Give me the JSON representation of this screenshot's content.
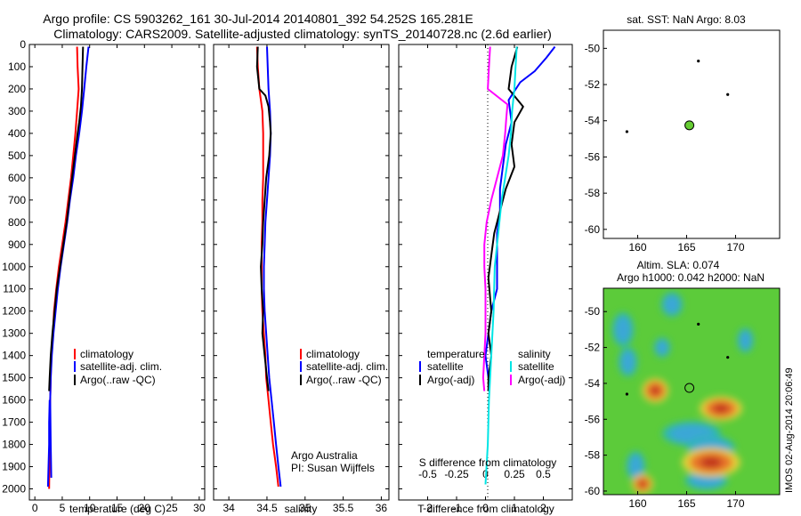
{
  "header": {
    "line1": "Argo profile: CS 5903262_161 30-Jul-2014 20140801_392 54.252S 165.281E",
    "line2": "Climatology: CARS2009. Satellite-adjusted climatology: synTS_20140728.nc (2.6d earlier)"
  },
  "credit": {
    "org": "Argo Australia",
    "pi": "PI: Susan Wijffels"
  },
  "stamp": "IMOS 02-Aug-2014 20:06:49",
  "colors": {
    "red": "#ff0000",
    "blue": "#0000ff",
    "black": "#000000",
    "cyan": "#00e5e5",
    "magenta": "#ff00ff",
    "green": "#66cc33"
  },
  "chart_data": [
    {
      "id": "temperature",
      "type": "line",
      "xlabel": "temperature (deg C)",
      "ylabel": "",
      "xlim": [
        -1,
        31
      ],
      "ylim": [
        2050,
        0
      ],
      "xticks": [
        0,
        5,
        10,
        15,
        20,
        25,
        30
      ],
      "yticks": [
        0,
        100,
        200,
        300,
        400,
        500,
        600,
        700,
        800,
        900,
        1000,
        1100,
        1200,
        1300,
        1400,
        1500,
        1600,
        1700,
        1800,
        1900,
        2000
      ],
      "legend": [
        "climatology",
        "satellite-adj. clim.",
        "Argo(..raw -QC)"
      ],
      "legend_placement": "lower-center",
      "series": [
        {
          "name": "climatology",
          "color": "red",
          "points": [
            [
              7.7,
              10
            ],
            [
              7.8,
              100
            ],
            [
              8.0,
              200
            ],
            [
              7.7,
              300
            ],
            [
              7.4,
              400
            ],
            [
              7.0,
              500
            ],
            [
              6.6,
              600
            ],
            [
              6.1,
              700
            ],
            [
              5.6,
              800
            ],
            [
              5.0,
              900
            ],
            [
              4.4,
              1000
            ],
            [
              3.9,
              1100
            ],
            [
              3.5,
              1200
            ],
            [
              3.3,
              1300
            ],
            [
              3.0,
              1400
            ],
            [
              2.9,
              1500
            ],
            [
              2.8,
              1600
            ],
            [
              2.7,
              1800
            ],
            [
              2.6,
              2000
            ]
          ]
        },
        {
          "name": "satellite-adj. clim.",
          "color": "blue",
          "points": [
            [
              9.8,
              10
            ],
            [
              9.4,
              100
            ],
            [
              9.0,
              200
            ],
            [
              8.6,
              300
            ],
            [
              8.1,
              400
            ],
            [
              7.5,
              500
            ],
            [
              7.0,
              600
            ],
            [
              6.4,
              700
            ],
            [
              5.9,
              800
            ],
            [
              5.3,
              900
            ],
            [
              4.7,
              1000
            ],
            [
              4.2,
              1100
            ],
            [
              3.8,
              1200
            ],
            [
              3.4,
              1300
            ],
            [
              3.1,
              1400
            ],
            [
              2.9,
              1500
            ],
            [
              2.8,
              1600
            ],
            [
              2.9,
              1800
            ],
            [
              3.0,
              1950
            ]
          ]
        },
        {
          "name": "Argo(..raw -QC)",
          "color": "black",
          "points": [
            [
              8.8,
              10
            ],
            [
              8.7,
              100
            ],
            [
              8.6,
              200
            ],
            [
              8.4,
              280
            ],
            [
              8.1,
              350
            ],
            [
              7.8,
              400
            ],
            [
              7.3,
              500
            ],
            [
              6.8,
              600
            ],
            [
              6.3,
              700
            ],
            [
              5.8,
              800
            ],
            [
              5.2,
              900
            ],
            [
              4.6,
              1000
            ],
            [
              4.0,
              1100
            ],
            [
              3.6,
              1200
            ],
            [
              3.2,
              1300
            ],
            [
              2.9,
              1400
            ],
            [
              2.7,
              1500
            ],
            [
              2.6,
              1560
            ]
          ]
        },
        {
          "name": "",
          "color": "blue",
          "points": [
            [
              2.7,
              1600
            ],
            [
              2.6,
              1700
            ],
            [
              2.6,
              1800
            ],
            [
              2.5,
              1900
            ],
            [
              2.4,
              1990
            ]
          ]
        }
      ]
    },
    {
      "id": "salinity",
      "type": "line",
      "xlabel": "salinity",
      "ylabel": "",
      "xlim": [
        33.8,
        36.1
      ],
      "ylim": [
        2050,
        0
      ],
      "xticks": [
        34,
        34.5,
        35,
        35.5,
        36
      ],
      "legend": [
        "climatology",
        "satellite-adj. clim.",
        "Argo(..raw -QC)"
      ],
      "legend_placement": "lower-right",
      "series": [
        {
          "name": "climatology",
          "color": "red",
          "points": [
            [
              34.37,
              10
            ],
            [
              34.38,
              100
            ],
            [
              34.4,
              200
            ],
            [
              34.44,
              300
            ],
            [
              34.45,
              400
            ],
            [
              34.45,
              500
            ],
            [
              34.45,
              600
            ],
            [
              34.44,
              700
            ],
            [
              34.44,
              800
            ],
            [
              34.43,
              900
            ],
            [
              34.43,
              1000
            ],
            [
              34.43,
              1100
            ],
            [
              34.44,
              1200
            ],
            [
              34.46,
              1300
            ],
            [
              34.48,
              1400
            ],
            [
              34.49,
              1500
            ],
            [
              34.52,
              1600
            ],
            [
              34.55,
              1700
            ],
            [
              34.58,
              1800
            ],
            [
              34.62,
              1900
            ],
            [
              34.65,
              1990
            ]
          ]
        },
        {
          "name": "satellite-adj. clim.",
          "color": "blue",
          "points": [
            [
              34.5,
              10
            ],
            [
              34.51,
              100
            ],
            [
              34.52,
              200
            ],
            [
              34.54,
              300
            ],
            [
              34.55,
              400
            ],
            [
              34.54,
              500
            ],
            [
              34.52,
              600
            ],
            [
              34.5,
              700
            ],
            [
              34.48,
              800
            ],
            [
              34.47,
              900
            ],
            [
              34.46,
              1000
            ],
            [
              34.46,
              1100
            ],
            [
              34.47,
              1200
            ],
            [
              34.49,
              1300
            ],
            [
              34.51,
              1400
            ],
            [
              34.53,
              1500
            ],
            [
              34.56,
              1600
            ],
            [
              34.59,
              1700
            ],
            [
              34.62,
              1800
            ],
            [
              34.65,
              1900
            ],
            [
              34.68,
              1990
            ]
          ]
        },
        {
          "name": "Argo(..raw -QC)",
          "color": "black",
          "points": [
            [
              34.38,
              10
            ],
            [
              34.37,
              100
            ],
            [
              34.4,
              200
            ],
            [
              34.48,
              230
            ],
            [
              34.52,
              280
            ],
            [
              34.54,
              350
            ],
            [
              34.55,
              400
            ],
            [
              34.53,
              500
            ],
            [
              34.49,
              600
            ],
            [
              34.47,
              700
            ],
            [
              34.45,
              800
            ],
            [
              34.44,
              900
            ],
            [
              34.42,
              1000
            ],
            [
              34.43,
              1100
            ],
            [
              34.45,
              1200
            ],
            [
              34.44,
              1300
            ],
            [
              34.47,
              1400
            ],
            [
              34.5,
              1500
            ],
            [
              34.52,
              1560
            ]
          ]
        }
      ]
    },
    {
      "id": "difference",
      "type": "line",
      "xlabel": "T difference from climatology",
      "xlabel2": "S difference from climatology",
      "ylabel": "",
      "xlim": [
        -3,
        3
      ],
      "ylim": [
        2050,
        0
      ],
      "xticks": [
        -2,
        -1,
        0,
        1,
        2
      ],
      "xticks2": [
        -0.5,
        -0.25,
        0,
        0.25,
        0.5
      ],
      "legend": {
        "temperature": "temperature",
        "salinity": "salinity",
        "t_sat": "satellite",
        "t_argo": "Argo(-adj)",
        "s_sat": "satellite",
        "s_argo": "Argo(-adj)"
      },
      "legend_placement": "lower-center",
      "series": [
        {
          "name": "satellite",
          "group": "temperature",
          "color": "blue",
          "points": [
            [
              2.4,
              10
            ],
            [
              2.1,
              60
            ],
            [
              1.7,
              120
            ],
            [
              1.2,
              170
            ],
            [
              0.8,
              250
            ],
            [
              0.9,
              350
            ],
            [
              0.7,
              450
            ],
            [
              0.6,
              550
            ],
            [
              0.5,
              650
            ],
            [
              0.5,
              750
            ],
            [
              0.4,
              850
            ],
            [
              0.4,
              950
            ],
            [
              0.4,
              1100
            ],
            [
              0.2,
              1200
            ],
            [
              0.1,
              1300
            ],
            [
              0,
              1400
            ],
            [
              0.1,
              1500
            ]
          ]
        },
        {
          "name": "Argo(-adj)",
          "group": "temperature",
          "color": "black",
          "points": [
            [
              1.1,
              10
            ],
            [
              0.9,
              100
            ],
            [
              0.8,
              200
            ],
            [
              1.3,
              280
            ],
            [
              1.0,
              350
            ],
            [
              0.9,
              450
            ],
            [
              1.0,
              550
            ],
            [
              0.7,
              650
            ],
            [
              0.5,
              750
            ],
            [
              0.3,
              850
            ],
            [
              0.2,
              950
            ],
            [
              0.1,
              1050
            ],
            [
              0.2,
              1200
            ],
            [
              0.1,
              1300
            ],
            [
              0.2,
              1400
            ],
            [
              0.1,
              1500
            ],
            [
              0.1,
              1560
            ]
          ]
        },
        {
          "name": "satellite",
          "group": "salinity",
          "color": "cyan",
          "points": [
            [
              0.27,
              10
            ],
            [
              0.26,
              100
            ],
            [
              0.25,
              200
            ],
            [
              0.23,
              300
            ],
            [
              0.22,
              400
            ],
            [
              0.2,
              500
            ],
            [
              0.17,
              600
            ],
            [
              0.14,
              700
            ],
            [
              0.12,
              800
            ],
            [
              0.1,
              900
            ],
            [
              0.08,
              1000
            ],
            [
              0.07,
              1200
            ],
            [
              0.05,
              1400
            ],
            [
              0.03,
              1600
            ],
            [
              0.02,
              1800
            ],
            [
              0.0,
              1980
            ]
          ]
        },
        {
          "name": "Argo(-adj)",
          "group": "salinity",
          "color": "magenta",
          "points": [
            [
              0.04,
              10
            ],
            [
              0.03,
              100
            ],
            [
              0.02,
              200
            ],
            [
              0.19,
              270
            ],
            [
              0.18,
              330
            ],
            [
              0.17,
              400
            ],
            [
              0.15,
              500
            ],
            [
              0.1,
              600
            ],
            [
              0.05,
              700
            ],
            [
              0.01,
              800
            ],
            [
              -0.01,
              900
            ],
            [
              -0.01,
              1000
            ],
            [
              0.0,
              1100
            ],
            [
              0.0,
              1300
            ],
            [
              -0.01,
              1400
            ],
            [
              -0.02,
              1500
            ],
            [
              -0.01,
              1560
            ]
          ]
        }
      ]
    },
    {
      "id": "map-sst",
      "type": "scatter",
      "title": "sat. SST: NaN Argo: 8.03",
      "xlim": [
        156.5,
        174.5
      ],
      "ylim": [
        -60.5,
        -49
      ],
      "xticks": [
        160,
        165,
        170
      ],
      "yticks": [
        -50,
        -52,
        -54,
        -56,
        -58,
        -60
      ],
      "argo_position": [
        165.281,
        -54.252
      ],
      "islands": [
        [
          166.2,
          -50.7
        ],
        [
          169.2,
          -52.55
        ],
        [
          158.9,
          -54.6
        ]
      ]
    },
    {
      "id": "map-sla",
      "type": "heatmap",
      "title_line1": "Altim. SLA: 0.074",
      "title_line2": "Argo h1000: 0.042 h2000: NaN",
      "xlim": [
        156.5,
        174.5
      ],
      "ylim": [
        -60.2,
        -48.7
      ],
      "xticks": [
        160,
        165,
        170
      ],
      "yticks": [
        -50,
        -52,
        -54,
        -56,
        -58,
        -60
      ],
      "argo_position": [
        165.281,
        -54.252
      ],
      "islands": [
        [
          166.2,
          -50.7
        ],
        [
          169.2,
          -52.55
        ],
        [
          158.9,
          -54.6
        ]
      ],
      "features": [
        {
          "kind": "low",
          "lon": 158.5,
          "lat": -51.0,
          "rx": 0.8,
          "ry": 0.7
        },
        {
          "kind": "low",
          "lon": 159.0,
          "lat": -52.8,
          "rx": 0.7,
          "ry": 0.6
        },
        {
          "kind": "low",
          "lon": 162.5,
          "lat": -52.0,
          "rx": 0.6,
          "ry": 0.4
        },
        {
          "kind": "low",
          "lon": 171.0,
          "lat": -51.6,
          "rx": 0.6,
          "ry": 0.5
        },
        {
          "kind": "low",
          "lon": 165.5,
          "lat": -56.8,
          "rx": 2.2,
          "ry": 0.5
        },
        {
          "kind": "low",
          "lon": 167.5,
          "lat": -57.6,
          "rx": 1.8,
          "ry": 0.5
        },
        {
          "kind": "low",
          "lon": 159.8,
          "lat": -58.6,
          "rx": 0.7,
          "ry": 0.6
        },
        {
          "kind": "low",
          "lon": 167.0,
          "lat": -59.4,
          "rx": 1.6,
          "ry": 0.4
        },
        {
          "kind": "high",
          "lon": 161.8,
          "lat": -54.4,
          "rx": 1.0,
          "ry": 0.5
        },
        {
          "kind": "high",
          "lon": 168.5,
          "lat": -55.4,
          "rx": 1.6,
          "ry": 0.5
        },
        {
          "kind": "high",
          "lon": 167.5,
          "lat": -58.4,
          "rx": 2.2,
          "ry": 0.6
        },
        {
          "kind": "high",
          "lon": 160.5,
          "lat": -59.6,
          "rx": 0.8,
          "ry": 0.4
        },
        {
          "kind": "low",
          "lon": 163.5,
          "lat": -49.6,
          "rx": 0.8,
          "ry": 0.5
        }
      ]
    }
  ]
}
